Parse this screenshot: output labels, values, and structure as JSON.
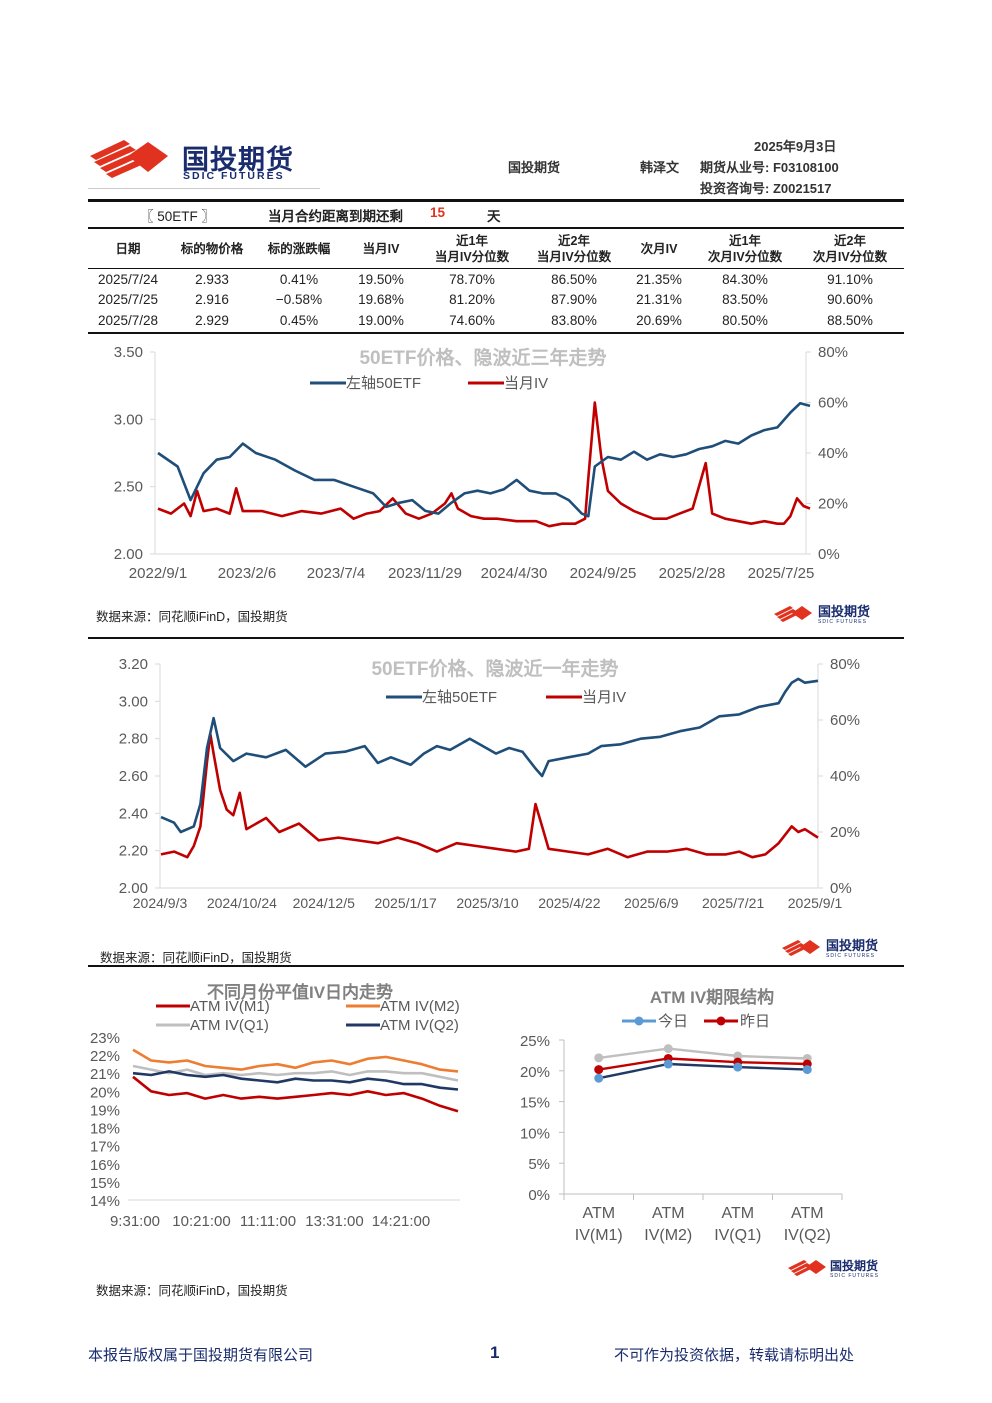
{
  "header": {
    "logo_cn": "国投期货",
    "logo_en": "SDIC FUTURES",
    "date": "2025年9月3日",
    "company": "国投期货",
    "analyst": "韩泽文",
    "license_line1": "期货从业号: F03108100",
    "license_line2": "投资咨询号: Z0021517"
  },
  "title_bar": {
    "product": "〖 50ETF 〗",
    "expiry_label": "当月合约距离到期还剩",
    "expiry_days": "15",
    "expiry_unit": "天"
  },
  "table": {
    "headers": [
      "日期",
      "标的物价格",
      "标的涨跌幅",
      "当月IV",
      "近1年\n当月IV分位数",
      "近2年\n当月IV分位数",
      "次月IV",
      "近1年\n次月IV分位数",
      "近2年\n次月IV分位数"
    ],
    "rows": [
      [
        "2025/7/24",
        "2.933",
        "0.41%",
        "19.50%",
        "78.70%",
        "86.50%",
        "21.35%",
        "84.30%",
        "91.10%"
      ],
      [
        "2025/7/25",
        "2.916",
        "−0.58%",
        "19.68%",
        "81.20%",
        "87.90%",
        "21.31%",
        "83.50%",
        "90.60%"
      ],
      [
        "2025/7/28",
        "2.929",
        "0.45%",
        "19.00%",
        "74.60%",
        "83.80%",
        "20.69%",
        "80.50%",
        "88.50%"
      ]
    ]
  },
  "source_text": "数据来源：同花顺iFinD，国投期货",
  "colors": {
    "blue": "#1f4e79",
    "red": "#c00000",
    "orange": "#ed7d31",
    "gray": "#bfbfbf",
    "navy": "#203864",
    "lightblue": "#5b9bd5"
  },
  "chart_data": [
    {
      "type": "line",
      "title": "50ETF价格、隐波近三年走势",
      "x_ticks": [
        "2022/9/1",
        "2023/2/6",
        "2023/7/4",
        "2023/11/29",
        "2024/4/30",
        "2024/9/25",
        "2025/2/28",
        "2025/7/25"
      ],
      "y_left_ticks": [
        "3.50",
        "3.00",
        "2.50",
        "2.00"
      ],
      "y_right_ticks": [
        "80%",
        "60%",
        "40%",
        "20%",
        "0%"
      ],
      "ylim_left": [
        2.0,
        3.5
      ],
      "ylim_right": [
        0,
        80
      ],
      "series": [
        {
          "name": "左轴50ETF",
          "axis": "left",
          "points": [
            [
              0,
              2.75
            ],
            [
              0.03,
              2.65
            ],
            [
              0.05,
              2.4
            ],
            [
              0.07,
              2.6
            ],
            [
              0.09,
              2.7
            ],
            [
              0.11,
              2.72
            ],
            [
              0.13,
              2.82
            ],
            [
              0.15,
              2.75
            ],
            [
              0.18,
              2.7
            ],
            [
              0.21,
              2.62
            ],
            [
              0.24,
              2.55
            ],
            [
              0.27,
              2.55
            ],
            [
              0.3,
              2.5
            ],
            [
              0.33,
              2.45
            ],
            [
              0.35,
              2.35
            ],
            [
              0.37,
              2.38
            ],
            [
              0.39,
              2.4
            ],
            [
              0.41,
              2.32
            ],
            [
              0.43,
              2.3
            ],
            [
              0.45,
              2.38
            ],
            [
              0.47,
              2.45
            ],
            [
              0.49,
              2.47
            ],
            [
              0.51,
              2.45
            ],
            [
              0.53,
              2.48
            ],
            [
              0.55,
              2.55
            ],
            [
              0.57,
              2.47
            ],
            [
              0.59,
              2.45
            ],
            [
              0.61,
              2.45
            ],
            [
              0.63,
              2.4
            ],
            [
              0.65,
              2.3
            ],
            [
              0.66,
              2.28
            ],
            [
              0.67,
              2.65
            ],
            [
              0.69,
              2.72
            ],
            [
              0.71,
              2.7
            ],
            [
              0.73,
              2.76
            ],
            [
              0.75,
              2.7
            ],
            [
              0.77,
              2.74
            ],
            [
              0.79,
              2.72
            ],
            [
              0.81,
              2.74
            ],
            [
              0.83,
              2.78
            ],
            [
              0.85,
              2.8
            ],
            [
              0.87,
              2.84
            ],
            [
              0.89,
              2.82
            ],
            [
              0.91,
              2.88
            ],
            [
              0.93,
              2.92
            ],
            [
              0.95,
              2.94
            ],
            [
              0.97,
              3.05
            ],
            [
              0.985,
              3.12
            ],
            [
              1.0,
              3.1
            ]
          ]
        },
        {
          "name": "当月IV",
          "axis": "right",
          "points": [
            [
              0,
              18
            ],
            [
              0.02,
              16
            ],
            [
              0.04,
              20
            ],
            [
              0.05,
              15
            ],
            [
              0.06,
              25
            ],
            [
              0.07,
              17
            ],
            [
              0.09,
              18
            ],
            [
              0.11,
              16
            ],
            [
              0.12,
              26
            ],
            [
              0.13,
              17
            ],
            [
              0.16,
              17
            ],
            [
              0.19,
              15
            ],
            [
              0.22,
              17
            ],
            [
              0.25,
              16
            ],
            [
              0.28,
              18
            ],
            [
              0.3,
              14
            ],
            [
              0.32,
              16
            ],
            [
              0.34,
              17
            ],
            [
              0.36,
              22
            ],
            [
              0.38,
              16
            ],
            [
              0.4,
              14
            ],
            [
              0.42,
              16
            ],
            [
              0.44,
              20
            ],
            [
              0.45,
              24
            ],
            [
              0.46,
              18
            ],
            [
              0.48,
              15
            ],
            [
              0.5,
              14
            ],
            [
              0.52,
              14
            ],
            [
              0.55,
              13
            ],
            [
              0.58,
              13
            ],
            [
              0.6,
              11
            ],
            [
              0.62,
              12
            ],
            [
              0.64,
              12
            ],
            [
              0.655,
              14
            ],
            [
              0.66,
              30
            ],
            [
              0.67,
              60
            ],
            [
              0.68,
              38
            ],
            [
              0.69,
              25
            ],
            [
              0.71,
              20
            ],
            [
              0.73,
              17
            ],
            [
              0.76,
              14
            ],
            [
              0.78,
              14
            ],
            [
              0.8,
              16
            ],
            [
              0.82,
              18
            ],
            [
              0.84,
              36
            ],
            [
              0.85,
              16
            ],
            [
              0.87,
              14
            ],
            [
              0.89,
              13
            ],
            [
              0.91,
              12
            ],
            [
              0.93,
              13
            ],
            [
              0.95,
              12
            ],
            [
              0.96,
              12
            ],
            [
              0.97,
              15
            ],
            [
              0.98,
              22
            ],
            [
              0.99,
              19
            ],
            [
              1.0,
              18
            ]
          ]
        }
      ]
    },
    {
      "type": "line",
      "title": "50ETF价格、隐波近一年走势",
      "x_ticks": [
        "2024/9/3",
        "2024/10/24",
        "2024/12/5",
        "2025/1/17",
        "2025/3/10",
        "2025/4/22",
        "2025/6/9",
        "2025/7/21",
        "2025/9/1"
      ],
      "y_left_ticks": [
        "3.20",
        "3.00",
        "2.80",
        "2.60",
        "2.40",
        "2.20",
        "2.00"
      ],
      "y_right_ticks": [
        "80%",
        "60%",
        "40%",
        "20%",
        "0%"
      ],
      "ylim_left": [
        2.0,
        3.2
      ],
      "ylim_right": [
        0,
        80
      ],
      "series": [
        {
          "name": "左轴50ETF",
          "axis": "left",
          "points": [
            [
              0,
              2.38
            ],
            [
              0.02,
              2.35
            ],
            [
              0.03,
              2.3
            ],
            [
              0.05,
              2.33
            ],
            [
              0.06,
              2.45
            ],
            [
              0.07,
              2.75
            ],
            [
              0.08,
              2.91
            ],
            [
              0.09,
              2.75
            ],
            [
              0.11,
              2.68
            ],
            [
              0.13,
              2.72
            ],
            [
              0.16,
              2.7
            ],
            [
              0.19,
              2.74
            ],
            [
              0.22,
              2.65
            ],
            [
              0.25,
              2.72
            ],
            [
              0.28,
              2.73
            ],
            [
              0.31,
              2.76
            ],
            [
              0.33,
              2.67
            ],
            [
              0.35,
              2.7
            ],
            [
              0.38,
              2.66
            ],
            [
              0.4,
              2.72
            ],
            [
              0.42,
              2.76
            ],
            [
              0.44,
              2.74
            ],
            [
              0.47,
              2.8
            ],
            [
              0.49,
              2.76
            ],
            [
              0.51,
              2.72
            ],
            [
              0.53,
              2.75
            ],
            [
              0.55,
              2.73
            ],
            [
              0.57,
              2.64
            ],
            [
              0.58,
              2.6
            ],
            [
              0.59,
              2.68
            ],
            [
              0.62,
              2.7
            ],
            [
              0.65,
              2.72
            ],
            [
              0.67,
              2.76
            ],
            [
              0.7,
              2.77
            ],
            [
              0.73,
              2.8
            ],
            [
              0.76,
              2.81
            ],
            [
              0.79,
              2.84
            ],
            [
              0.82,
              2.86
            ],
            [
              0.85,
              2.92
            ],
            [
              0.88,
              2.93
            ],
            [
              0.91,
              2.97
            ],
            [
              0.94,
              2.99
            ],
            [
              0.95,
              3.05
            ],
            [
              0.96,
              3.1
            ],
            [
              0.97,
              3.12
            ],
            [
              0.98,
              3.1
            ],
            [
              1.0,
              3.11
            ]
          ]
        },
        {
          "name": "当月IV",
          "axis": "right",
          "points": [
            [
              0,
              12
            ],
            [
              0.02,
              13
            ],
            [
              0.04,
              11
            ],
            [
              0.05,
              15
            ],
            [
              0.06,
              22
            ],
            [
              0.07,
              45
            ],
            [
              0.075,
              55
            ],
            [
              0.08,
              48
            ],
            [
              0.09,
              35
            ],
            [
              0.1,
              28
            ],
            [
              0.11,
              26
            ],
            [
              0.12,
              34
            ],
            [
              0.13,
              21
            ],
            [
              0.16,
              25
            ],
            [
              0.18,
              20
            ],
            [
              0.21,
              23
            ],
            [
              0.24,
              17
            ],
            [
              0.27,
              18
            ],
            [
              0.3,
              17
            ],
            [
              0.33,
              16
            ],
            [
              0.36,
              18
            ],
            [
              0.39,
              16
            ],
            [
              0.42,
              13
            ],
            [
              0.45,
              16
            ],
            [
              0.48,
              15
            ],
            [
              0.51,
              14
            ],
            [
              0.54,
              13
            ],
            [
              0.56,
              14
            ],
            [
              0.57,
              30
            ],
            [
              0.58,
              22
            ],
            [
              0.59,
              14
            ],
            [
              0.62,
              13
            ],
            [
              0.65,
              12
            ],
            [
              0.68,
              14
            ],
            [
              0.71,
              11
            ],
            [
              0.74,
              13
            ],
            [
              0.77,
              13
            ],
            [
              0.8,
              14
            ],
            [
              0.83,
              12
            ],
            [
              0.86,
              12
            ],
            [
              0.88,
              13
            ],
            [
              0.9,
              11
            ],
            [
              0.92,
              12
            ],
            [
              0.94,
              16
            ],
            [
              0.96,
              22
            ],
            [
              0.97,
              20
            ],
            [
              0.98,
              21
            ],
            [
              1.0,
              18
            ]
          ]
        }
      ]
    },
    {
      "type": "line",
      "title": "不同月份平值IV日内走势",
      "x_ticks": [
        "9:31:00",
        "10:21:00",
        "11:11:00",
        "13:31:00",
        "14:21:00"
      ],
      "y_ticks": [
        "23%",
        "22%",
        "21%",
        "20%",
        "19%",
        "18%",
        "17%",
        "16%",
        "15%",
        "14%"
      ],
      "ylim": [
        14,
        23
      ],
      "series": [
        {
          "name": "ATM IV(M1)",
          "values": [
            20.8,
            20.0,
            19.8,
            19.9,
            19.6,
            19.8,
            19.6,
            19.7,
            19.6,
            19.7,
            19.8,
            19.9,
            19.8,
            20.0,
            19.8,
            19.9,
            19.6,
            19.2,
            18.9
          ]
        },
        {
          "name": "ATM IV(M2)",
          "values": [
            22.3,
            21.7,
            21.6,
            21.7,
            21.4,
            21.3,
            21.2,
            21.4,
            21.5,
            21.3,
            21.6,
            21.7,
            21.5,
            21.8,
            21.9,
            21.7,
            21.5,
            21.2,
            21.1
          ]
        },
        {
          "name": "ATM IV(Q1)",
          "values": [
            21.4,
            21.2,
            21.0,
            21.2,
            20.9,
            21.0,
            20.9,
            21.0,
            20.9,
            21.0,
            21.0,
            21.1,
            20.9,
            21.1,
            21.1,
            21.0,
            21.0,
            20.8,
            20.6
          ]
        },
        {
          "name": "ATM IV(Q2)",
          "values": [
            21.0,
            20.9,
            21.1,
            20.9,
            20.8,
            20.9,
            20.7,
            20.6,
            20.5,
            20.7,
            20.6,
            20.6,
            20.5,
            20.7,
            20.6,
            20.4,
            20.4,
            20.2,
            20.1
          ]
        }
      ]
    },
    {
      "type": "line",
      "title": "ATM IV期限结构",
      "categories": [
        "ATM\nIV(M1)",
        "ATM\nIV(M2)",
        "ATM\nIV(Q1)",
        "ATM\nIV(Q2)"
      ],
      "y_ticks": [
        "25%",
        "20%",
        "15%",
        "10%",
        "5%",
        "0%"
      ],
      "ylim": [
        0,
        25
      ],
      "series": [
        {
          "name": "今日",
          "values": [
            18.8,
            21.1,
            20.6,
            20.2
          ]
        },
        {
          "name": "昨日",
          "values": [
            20.2,
            22.0,
            21.4,
            21.1
          ]
        },
        {
          "name": "",
          "values": [
            22.1,
            23.6,
            22.4,
            22.0
          ]
        }
      ]
    }
  ],
  "footer": {
    "left": "本报告版权属于国投期货有限公司",
    "page": "1",
    "right": "不可作为投资依据，转载请标明出处"
  }
}
